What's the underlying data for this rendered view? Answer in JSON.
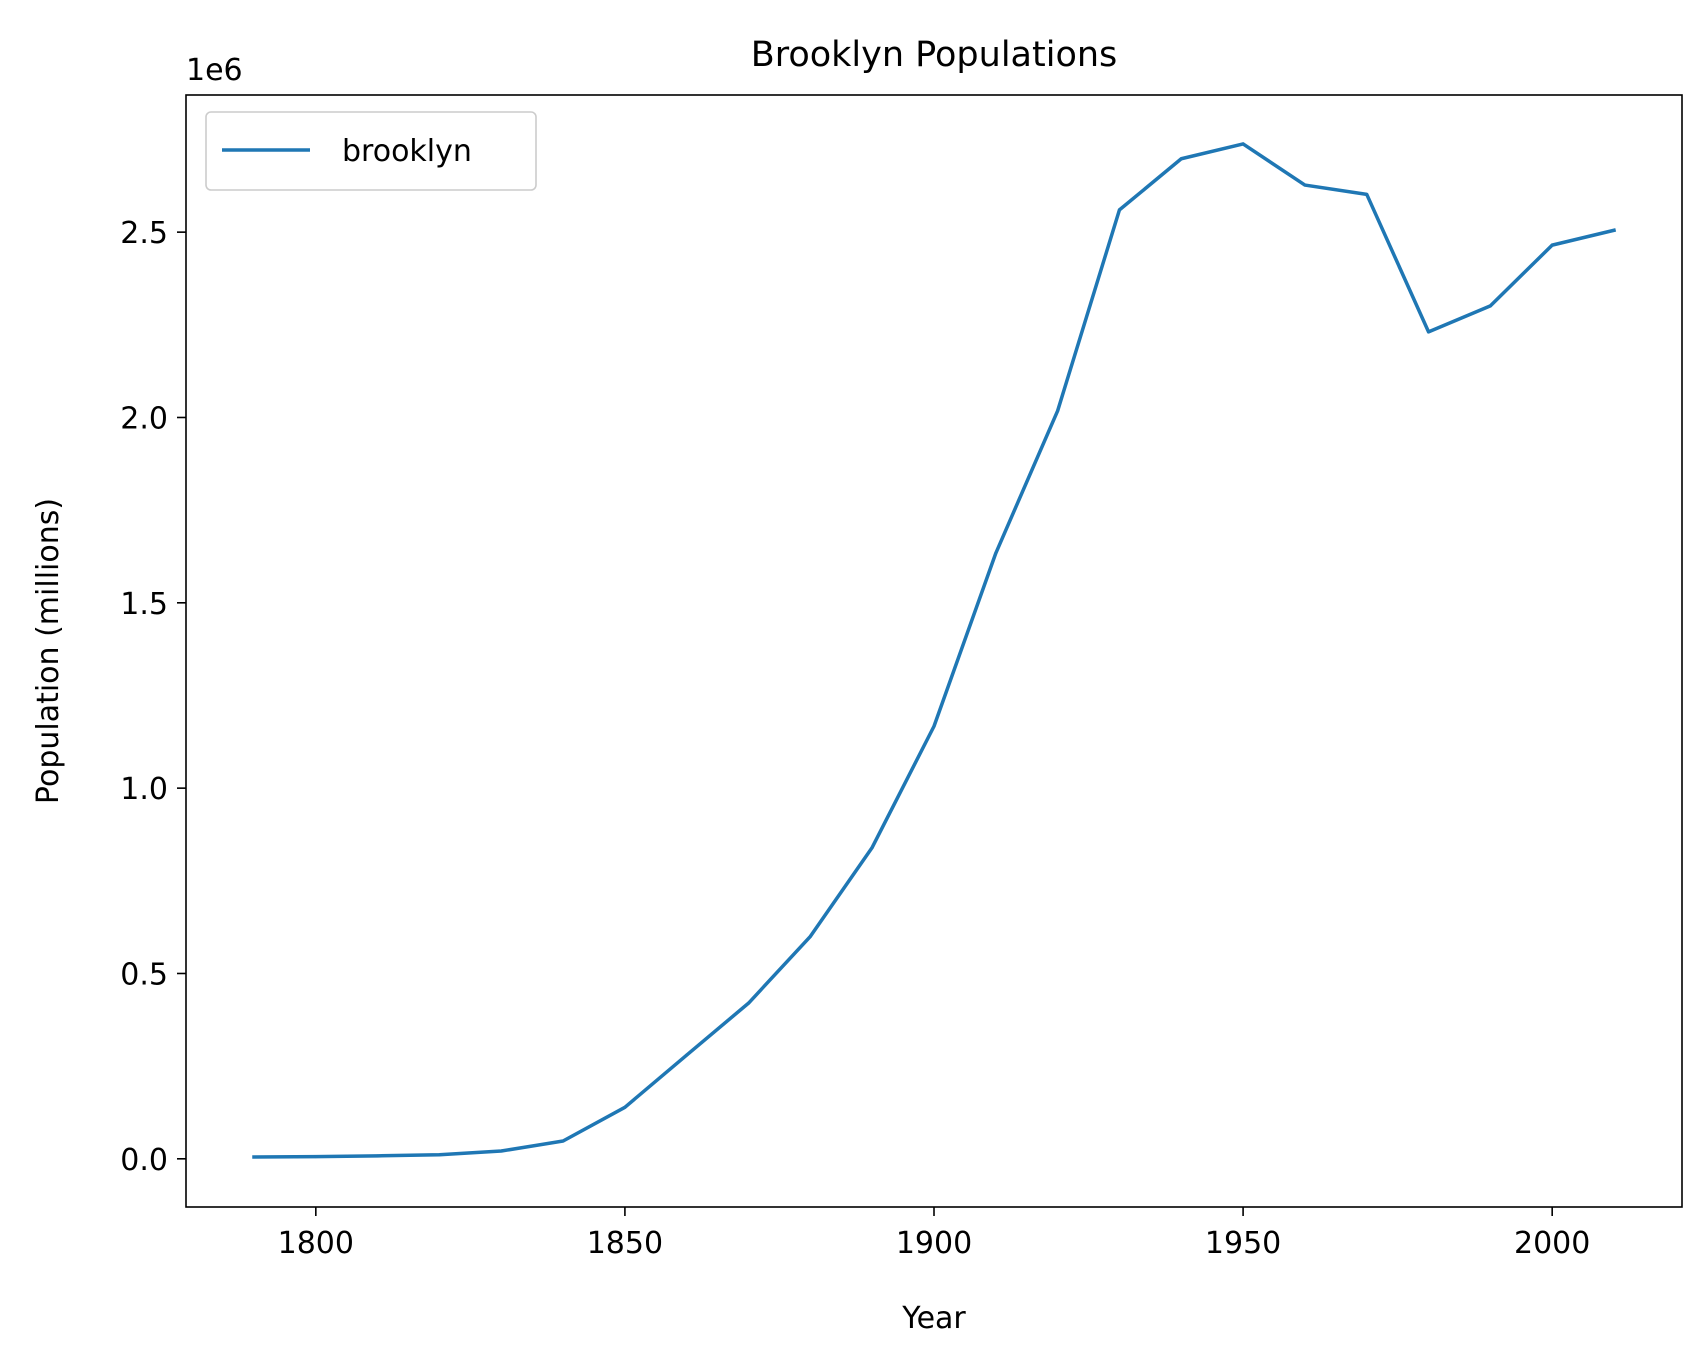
{
  "chart_data": {
    "type": "line",
    "title": "Brooklyn Populations",
    "xlabel": "Year",
    "ylabel": "Population (millions)",
    "y_offset_label": "1e6",
    "xlim": [
      1779,
      2021
    ],
    "ylim": [
      -130000,
      2870000
    ],
    "x_ticks": [
      {
        "value": 1800,
        "label": "1800"
      },
      {
        "value": 1850,
        "label": "1850"
      },
      {
        "value": 1900,
        "label": "1900"
      },
      {
        "value": 1950,
        "label": "1950"
      },
      {
        "value": 2000,
        "label": "2000"
      }
    ],
    "y_ticks": [
      {
        "value": 0,
        "label": "0.0"
      },
      {
        "value": 500000,
        "label": "0.5"
      },
      {
        "value": 1000000,
        "label": "1.0"
      },
      {
        "value": 1500000,
        "label": "1.5"
      },
      {
        "value": 2000000,
        "label": "2.0"
      },
      {
        "value": 2500000,
        "label": "2.5"
      }
    ],
    "grid": false,
    "legend_position": "top-left",
    "series": [
      {
        "name": "brooklyn",
        "color": "#1f77b4",
        "x": [
          1790,
          1800,
          1810,
          1820,
          1830,
          1840,
          1850,
          1860,
          1870,
          1880,
          1890,
          1900,
          1910,
          1920,
          1930,
          1940,
          1950,
          1960,
          1970,
          1980,
          1990,
          2000,
          2010
        ],
        "y": [
          5000,
          6000,
          8000,
          11000,
          21000,
          48000,
          139000,
          280000,
          420000,
          600000,
          840000,
          1167000,
          1634000,
          2018000,
          2560000,
          2698000,
          2738000,
          2627000,
          2602000,
          2231000,
          2301000,
          2465000,
          2505000
        ]
      }
    ]
  }
}
